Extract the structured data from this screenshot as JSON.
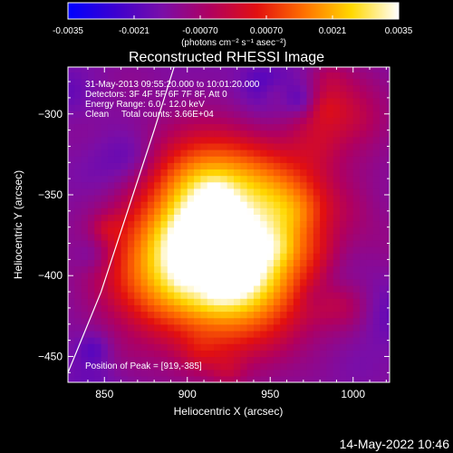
{
  "chart_data": {
    "type": "heatmap",
    "title": "Reconstructed RHESSI Image",
    "xlabel": "Heliocentric X (arcsec)",
    "ylabel": "Heliocentric Y (arcsec)",
    "xlim": [
      828,
      1022
    ],
    "ylim": [
      -466,
      -271
    ],
    "xticks": [
      850,
      900,
      950,
      1000
    ],
    "yticks": [
      -300,
      -350,
      -400,
      -450
    ],
    "colorbar": {
      "range": [
        -0.0035,
        0.0035
      ],
      "ticks": [
        "-0.0035",
        "-0.0021",
        "-0.00070",
        "0.00070",
        "0.0021",
        "0.0035"
      ],
      "unit_label": "(photons cm⁻² s⁻¹ asec⁻²)",
      "colors": [
        "#0000ff",
        "#3c00d0",
        "#7a0ea8",
        "#b00060",
        "#e21010",
        "#ff7000",
        "#ffd800",
        "#ffffff"
      ]
    },
    "annotations": [
      "31-May-2013 09:55:20.000 to 10:01:20.000",
      "Detectors: 3F 4F 5F 6F 7F 8F, Att 0",
      "Energy Range: 6.0 - 12.0 keV",
      "Clean     Total counts: 3.66E+04"
    ],
    "peak_label": "Position of Peak = [919,-385]",
    "peak": [
      919,
      -385
    ],
    "peak_value": 0.0035,
    "limb_curve": [
      [
        892,
        -271
      ],
      [
        880,
        -310
      ],
      [
        864,
        -360
      ],
      [
        848,
        -410
      ],
      [
        828,
        -460
      ]
    ],
    "background_level": -0.0015
  },
  "footer_date": "14-May-2022 10:46"
}
